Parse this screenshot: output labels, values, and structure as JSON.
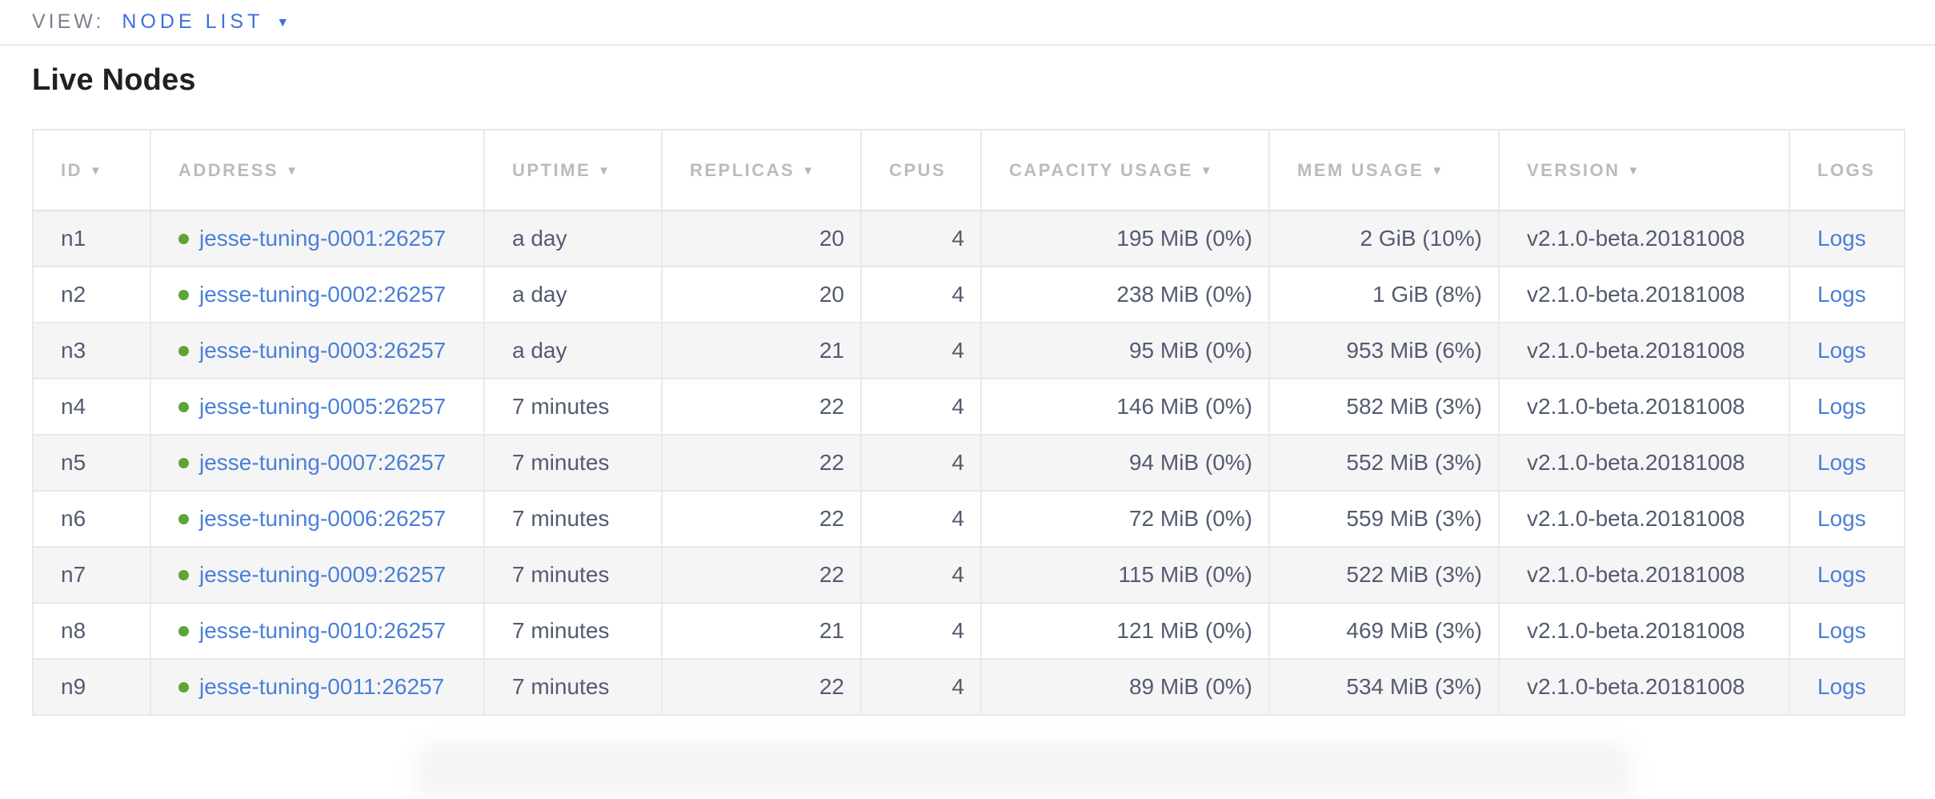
{
  "view_bar": {
    "label": "VIEW:",
    "selected": "NODE LIST",
    "dropdown_icon": "▼"
  },
  "page": {
    "title": "Live Nodes"
  },
  "table": {
    "sort_icon": "▼",
    "columns": [
      {
        "key": "id",
        "label": "ID",
        "sorted": true
      },
      {
        "key": "address",
        "label": "ADDRESS",
        "sorted": true
      },
      {
        "key": "uptime",
        "label": "UPTIME",
        "sorted": true
      },
      {
        "key": "replicas",
        "label": "REPLICAS",
        "sorted": true
      },
      {
        "key": "cpus",
        "label": "CPUS",
        "sorted": false
      },
      {
        "key": "capacity_usage",
        "label": "CAPACITY USAGE",
        "sorted": true
      },
      {
        "key": "mem_usage",
        "label": "MEM USAGE",
        "sorted": true
      },
      {
        "key": "version",
        "label": "VERSION",
        "sorted": true
      },
      {
        "key": "logs",
        "label": "LOGS",
        "sorted": false
      }
    ],
    "rows": [
      {
        "id": "n1",
        "status": "live",
        "address": "jesse-tuning-0001:26257",
        "uptime": "a day",
        "replicas": "20",
        "cpus": "4",
        "capacity_usage": "195 MiB (0%)",
        "mem_usage": "2 GiB (10%)",
        "version": "v2.1.0-beta.20181008",
        "logs": "Logs"
      },
      {
        "id": "n2",
        "status": "live",
        "address": "jesse-tuning-0002:26257",
        "uptime": "a day",
        "replicas": "20",
        "cpus": "4",
        "capacity_usage": "238 MiB (0%)",
        "mem_usage": "1 GiB (8%)",
        "version": "v2.1.0-beta.20181008",
        "logs": "Logs"
      },
      {
        "id": "n3",
        "status": "live",
        "address": "jesse-tuning-0003:26257",
        "uptime": "a day",
        "replicas": "21",
        "cpus": "4",
        "capacity_usage": "95 MiB (0%)",
        "mem_usage": "953 MiB (6%)",
        "version": "v2.1.0-beta.20181008",
        "logs": "Logs"
      },
      {
        "id": "n4",
        "status": "live",
        "address": "jesse-tuning-0005:26257",
        "uptime": "7 minutes",
        "replicas": "22",
        "cpus": "4",
        "capacity_usage": "146 MiB (0%)",
        "mem_usage": "582 MiB (3%)",
        "version": "v2.1.0-beta.20181008",
        "logs": "Logs"
      },
      {
        "id": "n5",
        "status": "live",
        "address": "jesse-tuning-0007:26257",
        "uptime": "7 minutes",
        "replicas": "22",
        "cpus": "4",
        "capacity_usage": "94 MiB (0%)",
        "mem_usage": "552 MiB (3%)",
        "version": "v2.1.0-beta.20181008",
        "logs": "Logs"
      },
      {
        "id": "n6",
        "status": "live",
        "address": "jesse-tuning-0006:26257",
        "uptime": "7 minutes",
        "replicas": "22",
        "cpus": "4",
        "capacity_usage": "72 MiB (0%)",
        "mem_usage": "559 MiB (3%)",
        "version": "v2.1.0-beta.20181008",
        "logs": "Logs"
      },
      {
        "id": "n7",
        "status": "live",
        "address": "jesse-tuning-0009:26257",
        "uptime": "7 minutes",
        "replicas": "22",
        "cpus": "4",
        "capacity_usage": "115 MiB (0%)",
        "mem_usage": "522 MiB (3%)",
        "version": "v2.1.0-beta.20181008",
        "logs": "Logs"
      },
      {
        "id": "n8",
        "status": "live",
        "address": "jesse-tuning-0010:26257",
        "uptime": "7 minutes",
        "replicas": "21",
        "cpus": "4",
        "capacity_usage": "121 MiB (0%)",
        "mem_usage": "469 MiB (3%)",
        "version": "v2.1.0-beta.20181008",
        "logs": "Logs"
      },
      {
        "id": "n9",
        "status": "live",
        "address": "jesse-tuning-0011:26257",
        "uptime": "7 minutes",
        "replicas": "22",
        "cpus": "4",
        "capacity_usage": "89 MiB (0%)",
        "mem_usage": "534 MiB (3%)",
        "version": "v2.1.0-beta.20181008",
        "logs": "Logs"
      }
    ]
  },
  "colors": {
    "link_blue": "#4a7fd8",
    "accent_blue": "#3e6fd9",
    "live_dot_green": "#5fa436",
    "header_text_gray": "#b9bbbe",
    "body_text": "#535b70",
    "row_stripe": "#f5f5f6"
  }
}
